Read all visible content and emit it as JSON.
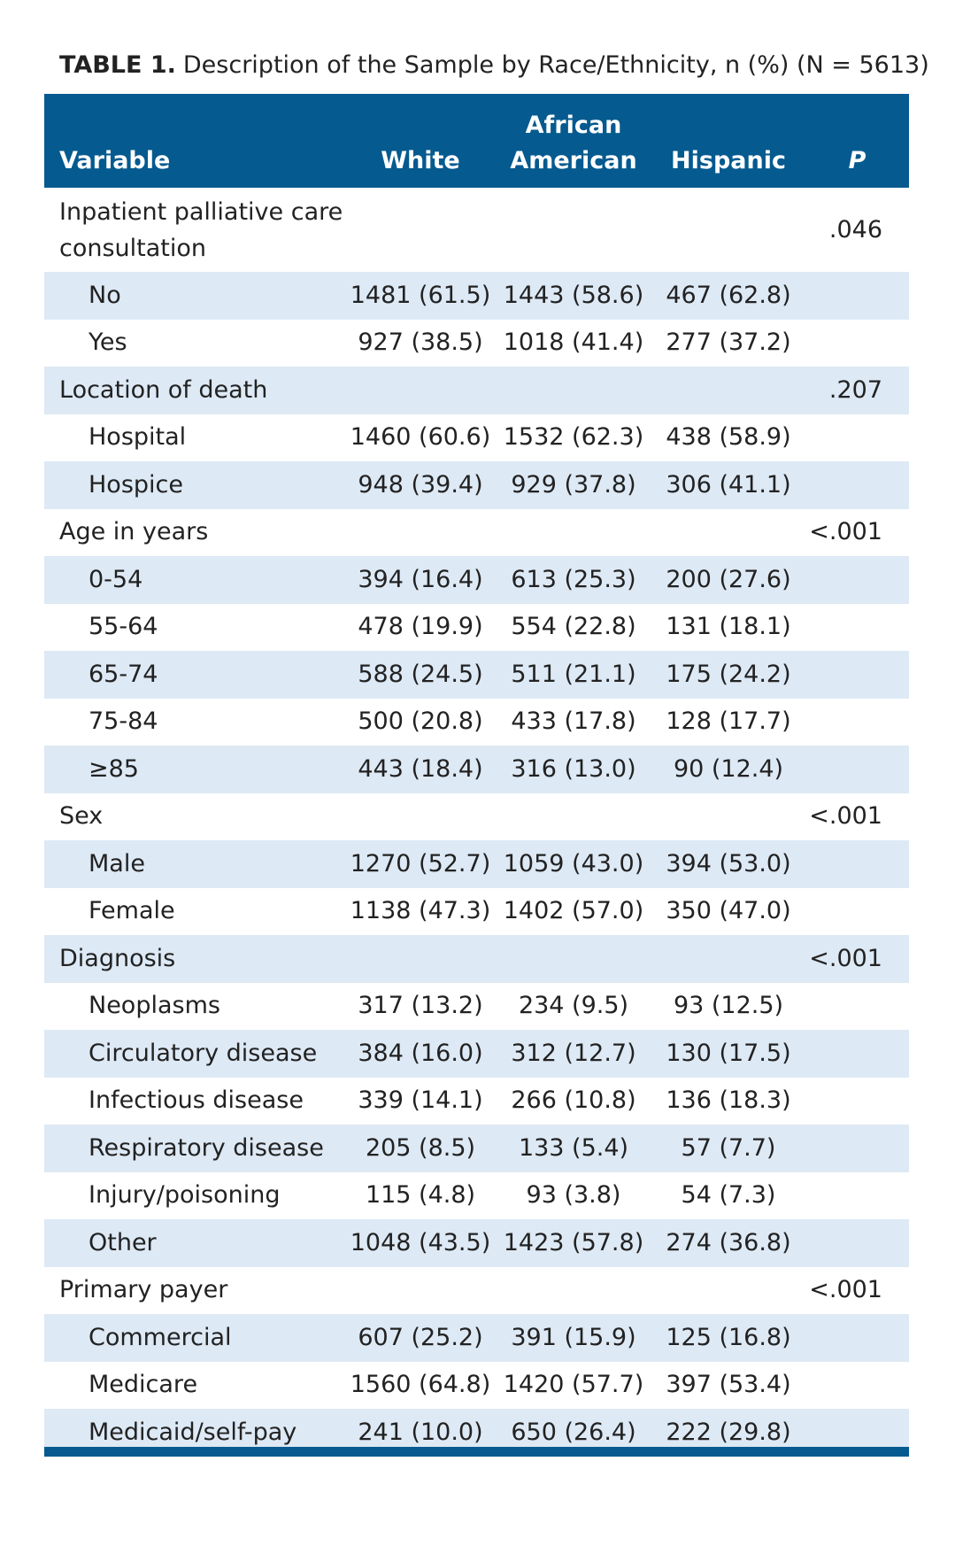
{
  "title": {
    "label": "TABLE 1.",
    "text": "Description of the Sample by Race/Ethnicity, n (%) (N = 5613)"
  },
  "table": {
    "header": [
      "Variable",
      "White",
      "African American",
      "Hispanic",
      "P"
    ],
    "groups": [
      {
        "label": "Inpatient palliative care consultation",
        "p": ".046",
        "items": [
          {
            "label": "No",
            "values": [
              "1481 (61.5)",
              "1443 (58.6)",
              "467 (62.8)"
            ]
          },
          {
            "label": "Yes",
            "values": [
              "927 (38.5)",
              "1018 (41.4)",
              "277 (37.2)"
            ]
          }
        ]
      },
      {
        "label": "Location of death",
        "p": ".207",
        "items": [
          {
            "label": "Hospital",
            "values": [
              "1460 (60.6)",
              "1532 (62.3)",
              "438 (58.9)"
            ]
          },
          {
            "label": "Hospice",
            "values": [
              "948 (39.4)",
              "929 (37.8)",
              "306 (41.1)"
            ]
          }
        ]
      },
      {
        "label": "Age in years",
        "p": "<.001",
        "items": [
          {
            "label": "0-54",
            "values": [
              "394 (16.4)",
              "613 (25.3)",
              "200 (27.6)"
            ]
          },
          {
            "label": "55-64",
            "values": [
              "478 (19.9)",
              "554 (22.8)",
              "131 (18.1)"
            ]
          },
          {
            "label": "65-74",
            "values": [
              "588 (24.5)",
              "511 (21.1)",
              "175 (24.2)"
            ]
          },
          {
            "label": "75-84",
            "values": [
              "500 (20.8)",
              "433 (17.8)",
              "128 (17.7)"
            ]
          },
          {
            "label": "≥85",
            "values": [
              "443 (18.4)",
              "316 (13.0)",
              "90 (12.4)"
            ]
          }
        ]
      },
      {
        "label": "Sex",
        "p": "<.001",
        "items": [
          {
            "label": "Male",
            "values": [
              "1270 (52.7)",
              "1059 (43.0)",
              "394 (53.0)"
            ]
          },
          {
            "label": "Female",
            "values": [
              "1138 (47.3)",
              "1402 (57.0)",
              "350 (47.0)"
            ]
          }
        ]
      },
      {
        "label": "Diagnosis",
        "p": "<.001",
        "items": [
          {
            "label": "Neoplasms",
            "values": [
              "317 (13.2)",
              "234 (9.5)",
              "93 (12.5)"
            ]
          },
          {
            "label": "Circulatory disease",
            "values": [
              "384 (16.0)",
              "312 (12.7)",
              "130 (17.5)"
            ]
          },
          {
            "label": "Infectious disease",
            "values": [
              "339 (14.1)",
              "266 (10.8)",
              "136 (18.3)"
            ]
          },
          {
            "label": "Respiratory disease",
            "values": [
              "205 (8.5)",
              "133 (5.4)",
              "57 (7.7)"
            ]
          },
          {
            "label": "Injury/poisoning",
            "values": [
              "115 (4.8)",
              "93 (3.8)",
              "54 (7.3)"
            ]
          },
          {
            "label": "Other",
            "values": [
              "1048 (43.5)",
              "1423 (57.8)",
              "274 (36.8)"
            ]
          }
        ]
      },
      {
        "label": "Primary payer",
        "p": "<.001",
        "items": [
          {
            "label": "Commercial",
            "values": [
              "607 (25.2)",
              "391 (15.9)",
              "125 (16.8)"
            ]
          },
          {
            "label": "Medicare",
            "values": [
              "1560 (64.8)",
              "1420 (57.7)",
              "397 (53.4)"
            ]
          },
          {
            "label": "Medicaid/self-pay",
            "values": [
              "241 (10.0)",
              "650 (26.4)",
              "222 (29.8)"
            ]
          }
        ]
      }
    ]
  }
}
